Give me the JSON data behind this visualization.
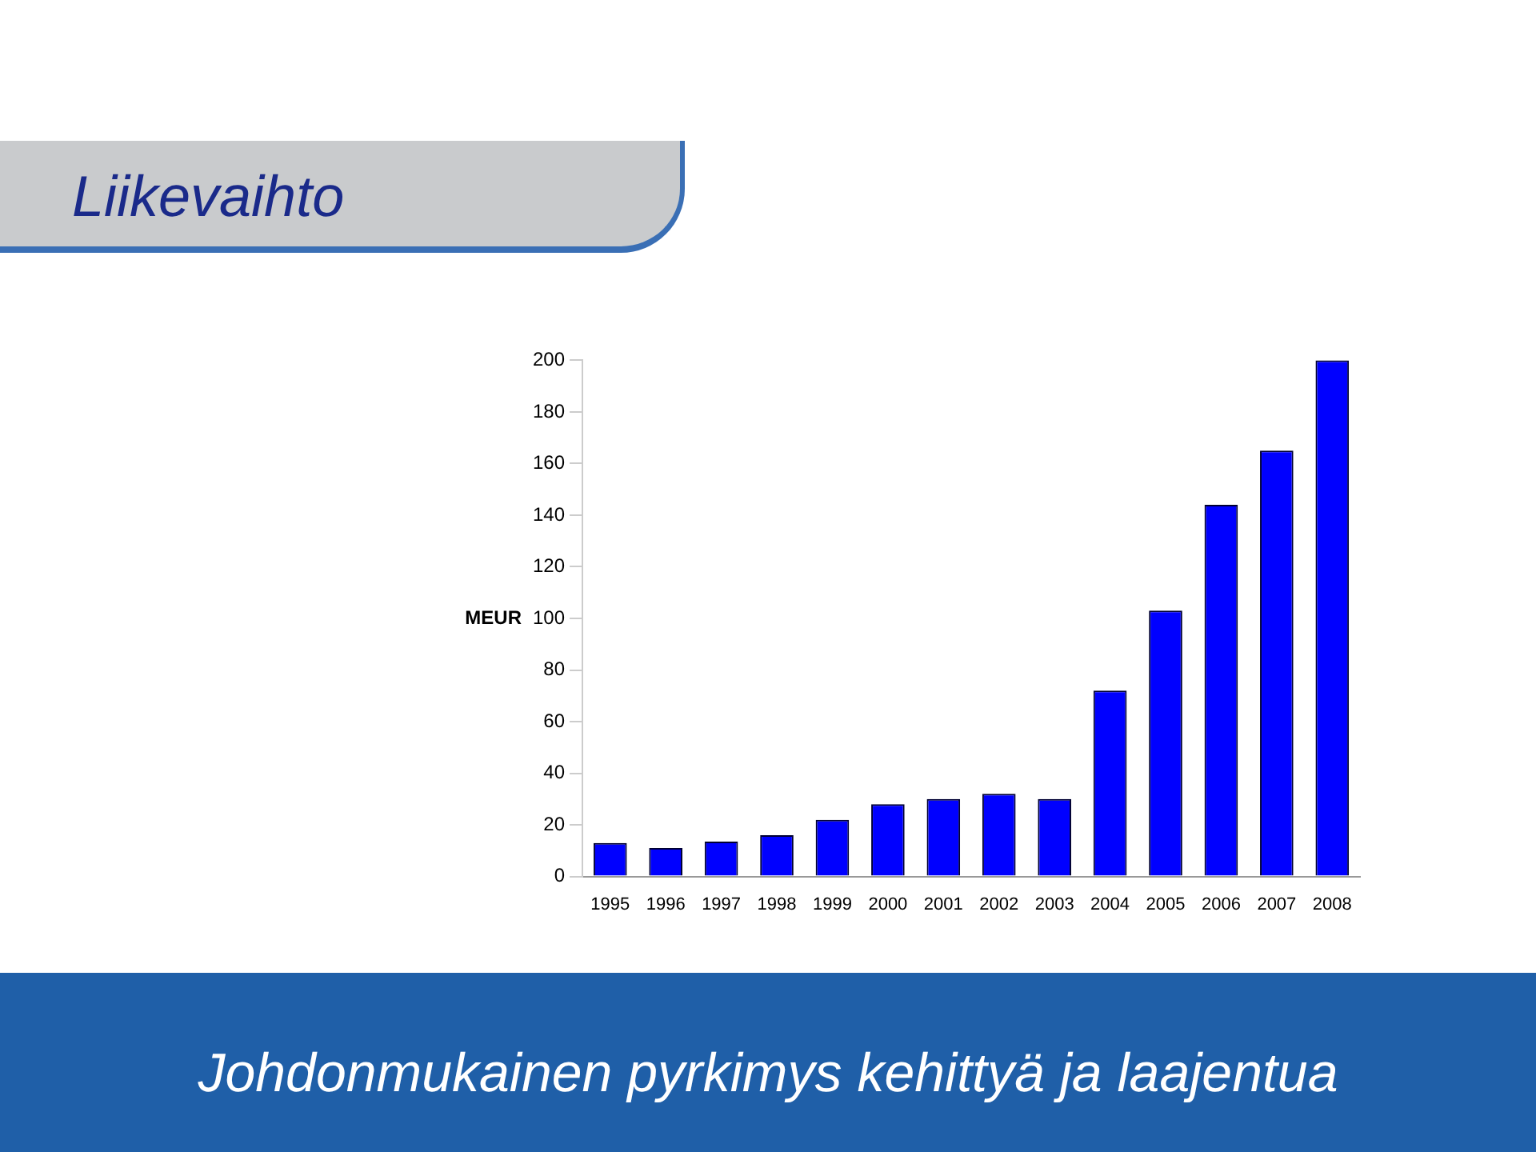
{
  "chart_data": {
    "type": "bar",
    "title": "Liikevaihto",
    "ylabel": "MEUR",
    "categories": [
      "1995",
      "1996",
      "1997",
      "1998",
      "1999",
      "2000",
      "2001",
      "2002",
      "2003",
      "2004",
      "2005",
      "2006",
      "2007",
      "2008"
    ],
    "values": [
      13,
      11,
      13.5,
      16,
      22,
      28,
      30,
      32,
      30,
      72,
      103,
      144,
      165,
      200
    ],
    "color": "#0000ff",
    "ylim": [
      0,
      200
    ],
    "yticks": [
      0,
      20,
      40,
      60,
      80,
      100,
      120,
      140,
      160,
      180,
      200
    ],
    "grid": false,
    "legend": false,
    "annotations": [
      "Johdonmukainen pyrkimys kehittyä ja laajentua"
    ]
  }
}
